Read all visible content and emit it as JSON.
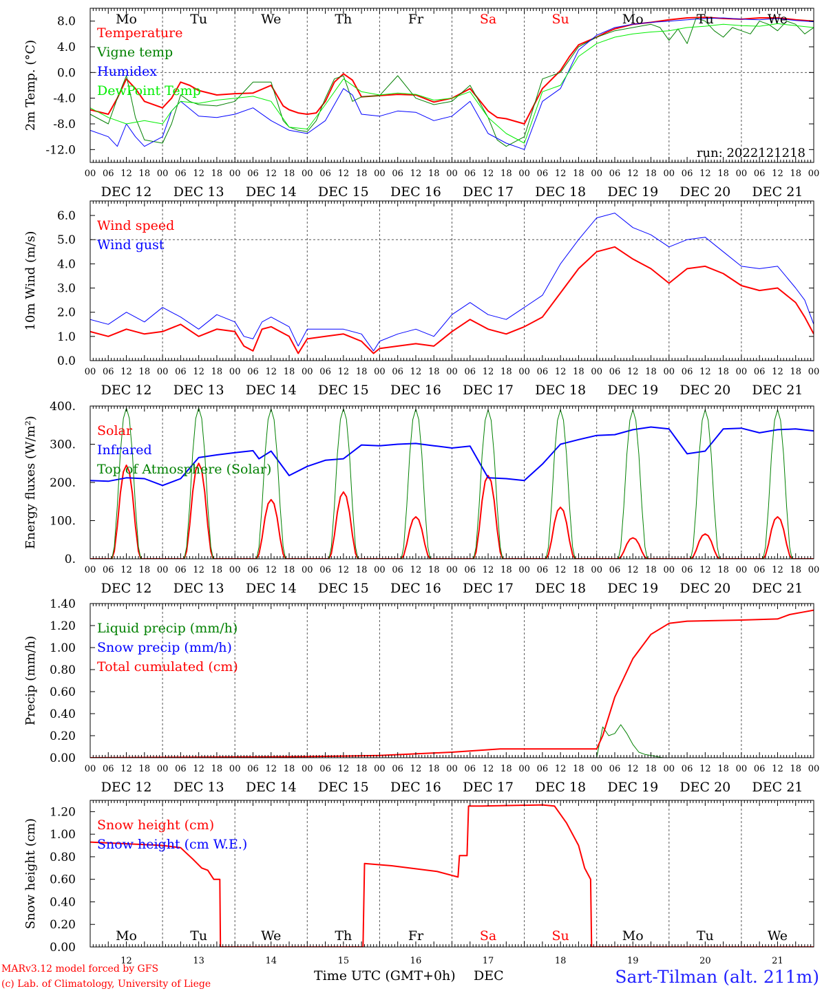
{
  "footer": {
    "model": "MARv3.12 model forced by GFS",
    "credit": "(c) Lab. of Climatology, University of Liege",
    "xlabel": "Time UTC (GMT+0h)",
    "month": "DEC",
    "station": "Sart-Tilman (alt. 211m)"
  },
  "colors": {
    "red": "#ff0000",
    "green": "#008000",
    "blue": "#0000ff",
    "lightgreen": "#00ee00",
    "weekday": "#000000",
    "weekend": "#ff0000"
  },
  "timeline": {
    "days": [
      "12",
      "13",
      "14",
      "15",
      "16",
      "17",
      "18",
      "19",
      "20",
      "21"
    ],
    "day_labels": [
      "DEC 12",
      "DEC 13",
      "DEC 14",
      "DEC 15",
      "DEC 16",
      "DEC 17",
      "DEC 18",
      "DEC 19",
      "DEC 20",
      "DEC 21"
    ],
    "weekdays": [
      "Mo",
      "Tu",
      "We",
      "Th",
      "Fr",
      "Sa",
      "Su",
      "Mo",
      "Tu",
      "We"
    ],
    "weekend": [
      false,
      false,
      false,
      false,
      false,
      true,
      true,
      false,
      false,
      false
    ],
    "hour_ticks": [
      "00",
      "06",
      "12",
      "18"
    ],
    "end_tick": "00"
  },
  "chart_data": [
    {
      "type": "line",
      "id": "temp",
      "ylabel": "2m Temp. (°C)",
      "ylim": [
        -14,
        10
      ],
      "yticks": [
        -12,
        -8,
        -4,
        0,
        4,
        8
      ],
      "ytick_labels": [
        "-12.0",
        "-8.0",
        "-4.0",
        "0.0",
        "4.0",
        "8.0"
      ],
      "ref_line": 0,
      "annotation": "run: 2022121218",
      "x_unit": "hours since DEC 12 00 UTC",
      "series": [
        {
          "name": "Temperature",
          "color": "#ff0000",
          "width": 2,
          "x": [
            0,
            6,
            9,
            12,
            15,
            18,
            24,
            27,
            30,
            33,
            36,
            42,
            48,
            54,
            60,
            64,
            66,
            69,
            72,
            75,
            78,
            81,
            84,
            87,
            90,
            96,
            102,
            108,
            114,
            120,
            126,
            132,
            135,
            138,
            144,
            150,
            156,
            159,
            162,
            168,
            171,
            174,
            180,
            186,
            192,
            198,
            204,
            210,
            216,
            222,
            228,
            234,
            240
          ],
          "y": [
            -5.8,
            -6.5,
            -4,
            -1,
            -2.5,
            -4.5,
            -5.5,
            -4,
            -1.5,
            -2,
            -2.8,
            -3.5,
            -3.3,
            -3.2,
            -2,
            -5.2,
            -5.8,
            -6.3,
            -6.5,
            -6.3,
            -4.5,
            -1.5,
            -0.2,
            -1.2,
            -3.8,
            -3.6,
            -3.4,
            -3.5,
            -4.6,
            -4,
            -2.5,
            -6,
            -7,
            -7.2,
            -8,
            -2.5,
            0.3,
            2.5,
            4.3,
            5.5,
            6.2,
            6.8,
            7.5,
            7.8,
            8.2,
            8.5,
            8.6,
            8.4,
            8.3,
            8.5,
            8.5,
            8.2,
            8
          ]
        },
        {
          "name": "Vigne temp",
          "color": "#008000",
          "width": 1,
          "x": [
            0,
            6,
            9,
            12,
            15,
            18,
            24,
            27,
            30,
            33,
            36,
            42,
            48,
            54,
            60,
            64,
            66,
            69,
            72,
            75,
            78,
            81,
            84,
            87,
            90,
            96,
            102,
            108,
            114,
            120,
            126,
            132,
            135,
            138,
            144,
            150,
            156,
            159,
            162,
            168,
            171,
            174,
            180,
            186,
            189,
            192,
            195,
            198,
            201,
            204,
            207,
            210,
            213,
            216,
            219,
            222,
            225,
            228,
            231,
            234,
            237,
            240
          ],
          "y": [
            -6.5,
            -8,
            -4,
            -0.5,
            -7,
            -10.5,
            -11,
            -8,
            -3.5,
            -4.5,
            -5,
            -5.2,
            -4.5,
            -1.5,
            -1.5,
            -7.5,
            -8.5,
            -9,
            -9.2,
            -7.5,
            -4,
            -1,
            -0.5,
            -4.5,
            -3.8,
            -3.6,
            -0.5,
            -4,
            -5,
            -4.5,
            -2,
            -7,
            -10.5,
            -11.5,
            -10,
            -1,
            0,
            2,
            4,
            5.5,
            6,
            6.5,
            7,
            7.5,
            7,
            5,
            6.8,
            4.5,
            8.5,
            8,
            6.5,
            5.5,
            7,
            6.5,
            6,
            8,
            7.5,
            6.5,
            8,
            7.5,
            6,
            7
          ]
        },
        {
          "name": "Humidex",
          "color": "#0000ff",
          "width": 1,
          "x": [
            0,
            6,
            9,
            12,
            15,
            18,
            24,
            27,
            30,
            36,
            42,
            48,
            54,
            60,
            66,
            72,
            78,
            84,
            87,
            90,
            96,
            102,
            108,
            114,
            120,
            126,
            132,
            138,
            144,
            150,
            156,
            162,
            168,
            174,
            180,
            186,
            192,
            198,
            204,
            210,
            216,
            222,
            228,
            234,
            240
          ],
          "y": [
            -9,
            -10,
            -11.5,
            -8,
            -10,
            -11.5,
            -10,
            -6,
            -4.5,
            -6.8,
            -7,
            -6.5,
            -5.5,
            -7.5,
            -9,
            -9.5,
            -7.5,
            -2.5,
            -3.5,
            -6.5,
            -6.8,
            -6,
            -6.2,
            -7.5,
            -6.8,
            -4.5,
            -9.5,
            -11,
            -12,
            -4.5,
            -2.5,
            3.5,
            5.8,
            7,
            7.5,
            7.8,
            8,
            8.2,
            8.4,
            8.5,
            8.3,
            8.2,
            8.4,
            8.1,
            7.9
          ]
        },
        {
          "name": "DewPoint Temp",
          "color": "#00ee00",
          "width": 1,
          "x": [
            0,
            6,
            12,
            18,
            24,
            27,
            30,
            36,
            42,
            48,
            54,
            60,
            66,
            72,
            78,
            84,
            90,
            96,
            102,
            108,
            114,
            120,
            126,
            132,
            138,
            144,
            150,
            156,
            162,
            168,
            174,
            180,
            186,
            192,
            198,
            204,
            210,
            216,
            222,
            228,
            234,
            240
          ],
          "y": [
            -5.5,
            -7,
            -8,
            -7.5,
            -8,
            -6,
            -4.5,
            -4.8,
            -4.3,
            -4,
            -3.7,
            -4.5,
            -8.5,
            -8.8,
            -5,
            -1,
            -3,
            -3.5,
            -3.2,
            -3.4,
            -4.3,
            -4,
            -3,
            -7,
            -9.5,
            -11,
            -3,
            -2,
            2.5,
            4.5,
            5.5,
            6,
            6.3,
            6.5,
            7,
            7.2,
            7.5,
            7.3,
            7.2,
            7.6,
            7.3,
            7
          ]
        }
      ]
    },
    {
      "type": "line",
      "id": "wind",
      "ylabel": "10m Wind (m/s)",
      "ylim": [
        0,
        6.6
      ],
      "yticks": [
        0,
        1,
        2,
        3,
        4,
        5,
        6
      ],
      "ytick_labels": [
        "0.0",
        "1.0",
        "2.0",
        "3.0",
        "4.0",
        "5.0",
        "6.0"
      ],
      "ref_line": 5,
      "x_unit": "hours since DEC 12 00 UTC",
      "series": [
        {
          "name": "Wind speed",
          "color": "#ff0000",
          "width": 2,
          "x": [
            0,
            6,
            12,
            18,
            24,
            30,
            36,
            42,
            48,
            51,
            54,
            57,
            60,
            66,
            69,
            72,
            78,
            84,
            90,
            94,
            96,
            102,
            108,
            114,
            120,
            126,
            132,
            138,
            144,
            150,
            156,
            162,
            168,
            174,
            180,
            186,
            192,
            198,
            204,
            210,
            216,
            222,
            228,
            234,
            237,
            240
          ],
          "y": [
            1.2,
            1.0,
            1.3,
            1.1,
            1.2,
            1.5,
            1.0,
            1.3,
            1.2,
            0.6,
            0.4,
            1.3,
            1.4,
            1.0,
            0.3,
            0.9,
            1.0,
            1.1,
            0.8,
            0.3,
            0.5,
            0.6,
            0.7,
            0.6,
            1.2,
            1.7,
            1.3,
            1.1,
            1.4,
            1.8,
            2.8,
            3.8,
            4.5,
            4.7,
            4.2,
            3.8,
            3.2,
            3.8,
            3.9,
            3.6,
            3.1,
            2.9,
            3.0,
            2.4,
            1.8,
            1.1
          ]
        },
        {
          "name": "Wind gust",
          "color": "#0000ff",
          "width": 1,
          "x": [
            0,
            6,
            12,
            18,
            24,
            30,
            36,
            42,
            48,
            51,
            54,
            57,
            60,
            66,
            69,
            72,
            78,
            84,
            90,
            94,
            96,
            102,
            108,
            114,
            120,
            126,
            132,
            138,
            144,
            150,
            156,
            162,
            168,
            174,
            180,
            186,
            192,
            198,
            204,
            210,
            216,
            222,
            228,
            234,
            237,
            240
          ],
          "y": [
            1.7,
            1.5,
            2.0,
            1.6,
            2.2,
            1.8,
            1.3,
            1.9,
            1.6,
            1.0,
            0.9,
            1.6,
            1.8,
            1.4,
            0.6,
            1.3,
            1.3,
            1.3,
            1.1,
            0.4,
            0.8,
            1.1,
            1.3,
            1.0,
            1.9,
            2.4,
            1.9,
            1.7,
            2.2,
            2.7,
            4.0,
            5.0,
            5.9,
            6.1,
            5.5,
            5.2,
            4.7,
            5.0,
            5.1,
            4.5,
            3.9,
            3.8,
            3.9,
            3.0,
            2.5,
            1.5
          ]
        }
      ]
    },
    {
      "type": "line",
      "id": "flux",
      "ylabel": "Energy fluxes (W/m²)",
      "ylim": [
        0,
        400
      ],
      "yticks": [
        0,
        100,
        200,
        300,
        400
      ],
      "ytick_labels": [
        "0.",
        "100.",
        "200.",
        "300.",
        "400."
      ],
      "x_unit": "hours since DEC 12 00 UTC",
      "series": [
        {
          "name": "Solar",
          "color": "#ff0000",
          "width": 2,
          "kind": "daily_peaks",
          "peaks": [
            245,
            250,
            155,
            175,
            110,
            218,
            135,
            55,
            65,
            110
          ]
        },
        {
          "name": "Infrared",
          "color": "#0000ff",
          "width": 2,
          "x": [
            0,
            6,
            12,
            18,
            24,
            30,
            36,
            42,
            48,
            54,
            56,
            60,
            66,
            72,
            78,
            84,
            90,
            96,
            102,
            108,
            114,
            120,
            126,
            132,
            138,
            144,
            150,
            156,
            162,
            168,
            174,
            180,
            186,
            192,
            198,
            204,
            210,
            216,
            222,
            228,
            234,
            240
          ],
          "y": [
            205,
            203,
            212,
            210,
            192,
            210,
            265,
            272,
            278,
            283,
            262,
            282,
            218,
            242,
            258,
            262,
            298,
            296,
            300,
            302,
            296,
            290,
            295,
            212,
            210,
            205,
            248,
            300,
            312,
            323,
            325,
            338,
            345,
            340,
            275,
            282,
            340,
            342,
            330,
            338,
            340,
            335
          ]
        },
        {
          "name": "Top of Atmosphere (Solar)",
          "color": "#008000",
          "width": 1,
          "kind": "daily_peaks",
          "peaks": [
            395,
            395,
            392,
            393,
            392,
            390,
            390,
            390,
            390,
            390
          ]
        }
      ]
    },
    {
      "type": "line",
      "id": "precip",
      "ylabel": "Precip (mm/h)",
      "ylim": [
        0,
        1.4
      ],
      "yticks": [
        0,
        0.2,
        0.4,
        0.6,
        0.8,
        1.0,
        1.2,
        1.4
      ],
      "ytick_labels": [
        "0.00",
        "0.20",
        "0.40",
        "0.60",
        "0.80",
        "1.00",
        "1.20",
        "1.40"
      ],
      "x_unit": "hours since DEC 12 00 UTC",
      "series": [
        {
          "name": "Liquid precip (mm/h)",
          "color": "#008000",
          "width": 1,
          "x": [
            0,
            168,
            170,
            172,
            174,
            176,
            178,
            180,
            182,
            184,
            186,
            188,
            190,
            192,
            194,
            240
          ],
          "y": [
            0,
            0,
            0.28,
            0.2,
            0.22,
            0.3,
            0.22,
            0.12,
            0.05,
            0.03,
            0.02,
            0.01,
            0,
            0,
            0,
            0
          ]
        },
        {
          "name": "Snow precip (mm/h)",
          "color": "#0000ff",
          "width": 1,
          "x": [
            0,
            240
          ],
          "y": [
            0,
            0
          ]
        },
        {
          "name": "Total cumulated (cm)",
          "color": "#ff0000",
          "width": 2,
          "x": [
            0,
            72,
            96,
            120,
            136,
            168,
            170,
            174,
            180,
            186,
            192,
            198,
            216,
            228,
            232,
            236,
            240
          ],
          "y": [
            0,
            0.01,
            0.02,
            0.05,
            0.08,
            0.08,
            0.2,
            0.55,
            0.9,
            1.12,
            1.22,
            1.24,
            1.25,
            1.26,
            1.3,
            1.32,
            1.34
          ]
        }
      ]
    },
    {
      "type": "line",
      "id": "snow",
      "ylabel": "Snow height (cm)",
      "ylim": [
        0,
        1.3
      ],
      "yticks": [
        0,
        0.2,
        0.4,
        0.6,
        0.8,
        1.0,
        1.2
      ],
      "ytick_labels": [
        "0.00",
        "0.20",
        "0.40",
        "0.60",
        "0.80",
        "1.00",
        "1.20"
      ],
      "x_unit": "hours since DEC 12 00 UTC",
      "series": [
        {
          "name": "Snow height (cm)",
          "color": "#ff0000",
          "width": 2,
          "x": [
            0,
            24,
            30,
            34,
            37,
            39,
            41,
            43,
            43.2,
            90.5,
            91,
            100,
            115,
            122,
            122.5,
            125,
            125.5,
            130,
            150,
            154,
            158,
            162,
            164,
            166,
            166.3,
            240
          ],
          "y": [
            0.93,
            0.9,
            0.88,
            0.78,
            0.7,
            0.68,
            0.6,
            0.6,
            0,
            0,
            0.74,
            0.72,
            0.67,
            0.62,
            0.81,
            0.81,
            1.25,
            1.25,
            1.26,
            1.25,
            1.1,
            0.9,
            0.7,
            0.6,
            0,
            0
          ]
        },
        {
          "name": "Snow height (cm W.E.)",
          "color": "#0000ff",
          "width": 1,
          "x": [
            0,
            240
          ],
          "y": [
            0,
            0
          ]
        }
      ]
    }
  ]
}
